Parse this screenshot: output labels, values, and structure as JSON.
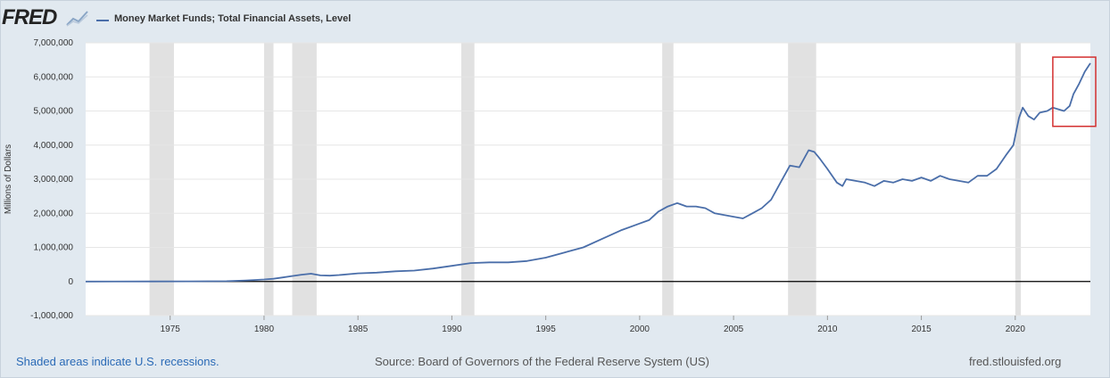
{
  "header": {
    "logo_text": "FRED",
    "logo_icon": "chart-sparkline-icon",
    "series_title": "Money Market Funds; Total Financial Assets, Level"
  },
  "footer": {
    "recession_note": "Shaded areas indicate U.S. recessions.",
    "source": "Source: Board of Governors of the Federal Reserve System (US)",
    "site": "fred.stlouisfed.org"
  },
  "colors": {
    "line": "#4a6ea9",
    "recession": "#e1e1e1",
    "plot_bg": "#ffffff",
    "annotation": "#d32f2f",
    "zero_line": "#000000",
    "page_bg": "#e1e9f0"
  },
  "chart_data": {
    "type": "line",
    "title": "Money Market Funds; Total Financial Assets, Level",
    "ylabel": "Millions of Dollars",
    "xlabel": "",
    "ylim": [
      -1000000,
      7000000
    ],
    "xlim": [
      1970.5,
      2024.0
    ],
    "grid": true,
    "yticks": [
      {
        "value": 7000000,
        "label": "7,000,000"
      },
      {
        "value": 6000000,
        "label": "6,000,000"
      },
      {
        "value": 5000000,
        "label": "5,000,000"
      },
      {
        "value": 4000000,
        "label": "4,000,000"
      },
      {
        "value": 3000000,
        "label": "3,000,000"
      },
      {
        "value": 2000000,
        "label": "2,000,000"
      },
      {
        "value": 1000000,
        "label": "1,000,000"
      },
      {
        "value": 0,
        "label": "0"
      },
      {
        "value": -1000000,
        "label": "-1,000,000"
      }
    ],
    "xticks": [
      {
        "value": 1975,
        "label": "1975"
      },
      {
        "value": 1980,
        "label": "1980"
      },
      {
        "value": 1985,
        "label": "1985"
      },
      {
        "value": 1990,
        "label": "1990"
      },
      {
        "value": 1995,
        "label": "1995"
      },
      {
        "value": 2000,
        "label": "2000"
      },
      {
        "value": 2005,
        "label": "2005"
      },
      {
        "value": 2010,
        "label": "2010"
      },
      {
        "value": 2015,
        "label": "2015"
      },
      {
        "value": 2020,
        "label": "2020"
      }
    ],
    "recessions": [
      [
        1973.9,
        1975.2
      ],
      [
        1980.0,
        1980.5
      ],
      [
        1981.5,
        1982.8
      ],
      [
        1990.5,
        1991.2
      ],
      [
        2001.2,
        2001.8
      ],
      [
        2007.9,
        2009.4
      ],
      [
        2020.0,
        2020.3
      ]
    ],
    "highlight": {
      "x": [
        2022.0,
        2024.0
      ],
      "y": [
        4550000,
        6580000
      ]
    },
    "series": [
      {
        "name": "Money Market Funds; Total Financial Assets, Level",
        "points": [
          [
            1970.5,
            0
          ],
          [
            1974.0,
            1000
          ],
          [
            1976.0,
            3000
          ],
          [
            1978.0,
            8000
          ],
          [
            1979.0,
            30000
          ],
          [
            1980.0,
            60000
          ],
          [
            1980.5,
            80000
          ],
          [
            1981.0,
            120000
          ],
          [
            1981.5,
            160000
          ],
          [
            1982.0,
            200000
          ],
          [
            1982.5,
            230000
          ],
          [
            1983.0,
            180000
          ],
          [
            1983.5,
            170000
          ],
          [
            1984.0,
            190000
          ],
          [
            1985.0,
            240000
          ],
          [
            1986.0,
            260000
          ],
          [
            1987.0,
            300000
          ],
          [
            1988.0,
            320000
          ],
          [
            1989.0,
            380000
          ],
          [
            1990.0,
            460000
          ],
          [
            1991.0,
            540000
          ],
          [
            1992.0,
            560000
          ],
          [
            1993.0,
            560000
          ],
          [
            1994.0,
            600000
          ],
          [
            1995.0,
            700000
          ],
          [
            1996.0,
            850000
          ],
          [
            1997.0,
            1000000
          ],
          [
            1998.0,
            1250000
          ],
          [
            1999.0,
            1500000
          ],
          [
            2000.0,
            1700000
          ],
          [
            2000.5,
            1800000
          ],
          [
            2001.0,
            2050000
          ],
          [
            2001.5,
            2200000
          ],
          [
            2002.0,
            2300000
          ],
          [
            2002.5,
            2200000
          ],
          [
            2003.0,
            2200000
          ],
          [
            2003.5,
            2150000
          ],
          [
            2004.0,
            2000000
          ],
          [
            2005.0,
            1900000
          ],
          [
            2005.5,
            1850000
          ],
          [
            2006.0,
            2000000
          ],
          [
            2006.5,
            2150000
          ],
          [
            2007.0,
            2400000
          ],
          [
            2007.5,
            2900000
          ],
          [
            2008.0,
            3400000
          ],
          [
            2008.5,
            3350000
          ],
          [
            2009.0,
            3850000
          ],
          [
            2009.3,
            3800000
          ],
          [
            2009.6,
            3600000
          ],
          [
            2010.0,
            3300000
          ],
          [
            2010.5,
            2900000
          ],
          [
            2010.8,
            2800000
          ],
          [
            2011.0,
            3000000
          ],
          [
            2011.5,
            2950000
          ],
          [
            2012.0,
            2900000
          ],
          [
            2012.5,
            2800000
          ],
          [
            2013.0,
            2950000
          ],
          [
            2013.5,
            2900000
          ],
          [
            2014.0,
            3000000
          ],
          [
            2014.5,
            2950000
          ],
          [
            2015.0,
            3050000
          ],
          [
            2015.5,
            2950000
          ],
          [
            2016.0,
            3100000
          ],
          [
            2016.5,
            3000000
          ],
          [
            2017.0,
            2950000
          ],
          [
            2017.5,
            2900000
          ],
          [
            2018.0,
            3100000
          ],
          [
            2018.5,
            3100000
          ],
          [
            2019.0,
            3300000
          ],
          [
            2019.5,
            3700000
          ],
          [
            2019.9,
            4000000
          ],
          [
            2020.2,
            4800000
          ],
          [
            2020.4,
            5100000
          ],
          [
            2020.7,
            4850000
          ],
          [
            2021.0,
            4750000
          ],
          [
            2021.3,
            4950000
          ],
          [
            2021.7,
            5000000
          ],
          [
            2022.0,
            5100000
          ],
          [
            2022.3,
            5050000
          ],
          [
            2022.6,
            5000000
          ],
          [
            2022.9,
            5150000
          ],
          [
            2023.1,
            5500000
          ],
          [
            2023.4,
            5800000
          ],
          [
            2023.7,
            6150000
          ],
          [
            2024.0,
            6400000
          ]
        ]
      }
    ]
  }
}
